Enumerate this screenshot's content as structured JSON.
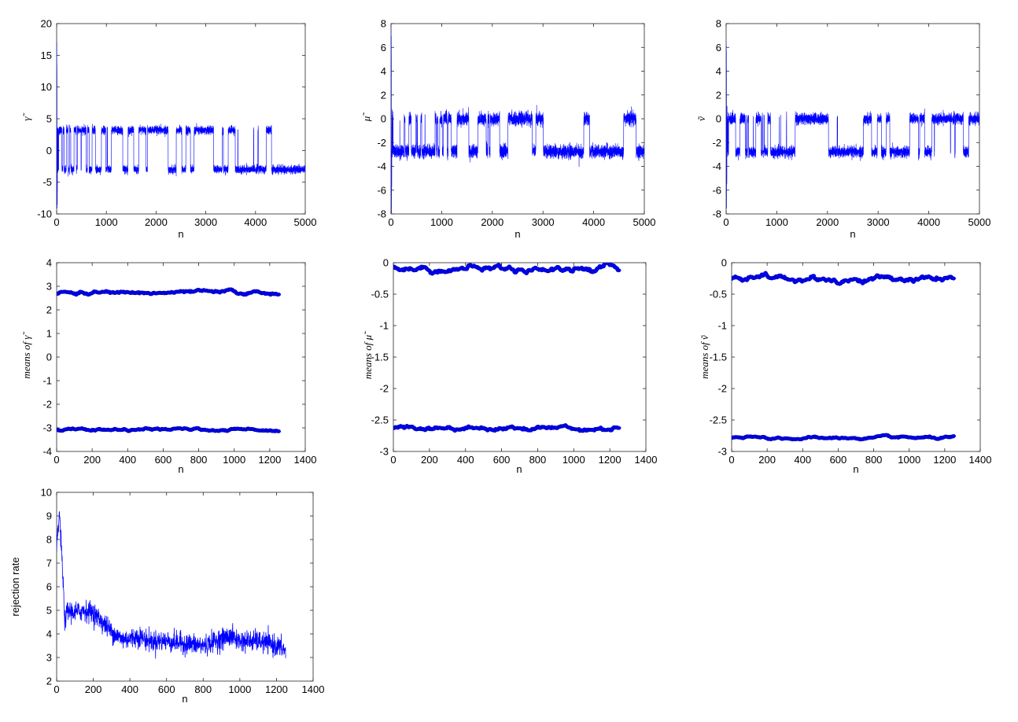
{
  "chart_data": [
    {
      "id": "p1",
      "type": "line",
      "ylabel": "γ̃",
      "xlabel": "n",
      "xlim": [
        0,
        5000
      ],
      "ylim": [
        -10,
        20
      ],
      "xticks": [
        "0",
        "1000",
        "2000",
        "3000",
        "4000",
        "5000"
      ],
      "yticks": [
        "-10",
        "-5",
        "0",
        "5",
        "10",
        "15",
        "20"
      ],
      "series": [
        {
          "color": "#0000ff",
          "pattern": "two-mode trace",
          "n": 5000,
          "upper_mode": 3.2,
          "lower_mode": -3.0,
          "band_halfwidth": 0.7,
          "burn_in_peak": 16.7,
          "burn_in_trough": -9.8,
          "jumps_until": 4500
        }
      ]
    },
    {
      "id": "p2",
      "type": "line",
      "ylabel": "μ̃",
      "xlabel": "n",
      "xlim": [
        0,
        5000
      ],
      "ylim": [
        -8,
        8
      ],
      "xticks": [
        "0",
        "1000",
        "2000",
        "3000",
        "4000",
        "5000"
      ],
      "yticks": [
        "-8",
        "-6",
        "-4",
        "-2",
        "0",
        "2",
        "4",
        "6",
        "8"
      ],
      "series": [
        {
          "color": "#0000ff",
          "pattern": "two-mode trace",
          "n": 5000,
          "upper_mode": 0.0,
          "lower_mode": -2.75,
          "band_halfwidth": 0.6,
          "burn_in_peak": 6.5,
          "burn_in_trough": -7.8,
          "jumps_until": 4900
        }
      ]
    },
    {
      "id": "p3",
      "type": "line",
      "ylabel": "ṽ",
      "xlabel": "n",
      "xlim": [
        0,
        5000
      ],
      "ylim": [
        -8,
        8
      ],
      "xticks": [
        "0",
        "1000",
        "2000",
        "3000",
        "4000",
        "5000"
      ],
      "yticks": [
        "-8",
        "-6",
        "-4",
        "-2",
        "0",
        "2",
        "4",
        "6",
        "8"
      ],
      "series": [
        {
          "color": "#0000ff",
          "pattern": "two-mode trace",
          "n": 5000,
          "upper_mode": 0.0,
          "lower_mode": -2.8,
          "band_halfwidth": 0.5,
          "burn_in_peak": 5.5,
          "burn_in_trough": -7.8,
          "jumps_until": 4800
        }
      ]
    },
    {
      "id": "p4",
      "type": "scatter",
      "ylabel": "means of γ̃",
      "xlabel": "n",
      "xlim": [
        0,
        1400
      ],
      "ylim": [
        -4,
        4
      ],
      "xticks": [
        "0",
        "200",
        "400",
        "600",
        "800",
        "1000",
        "1200",
        "1400"
      ],
      "yticks": [
        "-4",
        "-3",
        "-2",
        "-1",
        "0",
        "1",
        "2",
        "3",
        "4"
      ],
      "series": [
        {
          "color": "#0000ff",
          "x_start": 0,
          "x_end": 1250,
          "count": 250,
          "y_center": 2.72,
          "y_spread": 0.06
        },
        {
          "color": "#0000ff",
          "x_start": 0,
          "x_end": 1250,
          "count": 250,
          "y_center": -3.08,
          "y_spread": 0.04
        }
      ]
    },
    {
      "id": "p5",
      "type": "scatter",
      "ylabel": "means of μ̃",
      "xlabel": "n",
      "xlim": [
        0,
        1400
      ],
      "ylim": [
        -3,
        0
      ],
      "xticks": [
        "0",
        "200",
        "400",
        "600",
        "800",
        "1000",
        "1200",
        "1400"
      ],
      "yticks": [
        "-3",
        "-2.5",
        "-2",
        "-1.5",
        "-1",
        "-0.5",
        "0"
      ],
      "series": [
        {
          "color": "#0000ff",
          "x_start": 0,
          "x_end": 1250,
          "count": 250,
          "y_center": -0.09,
          "y_spread": 0.04
        },
        {
          "color": "#0000ff",
          "x_start": 0,
          "x_end": 1250,
          "count": 250,
          "y_center": -2.62,
          "y_spread": 0.03
        }
      ]
    },
    {
      "id": "p6",
      "type": "scatter",
      "ylabel": "means of ṽ",
      "xlabel": "n",
      "xlim": [
        0,
        1400
      ],
      "ylim": [
        -3,
        0
      ],
      "xticks": [
        "0",
        "200",
        "400",
        "600",
        "800",
        "1000",
        "1200",
        "1400"
      ],
      "yticks": [
        "-3",
        "-2.5",
        "-2",
        "-1.5",
        "-1",
        "-0.5",
        "0"
      ],
      "series": [
        {
          "color": "#0000ff",
          "x_start": 0,
          "x_end": 1250,
          "count": 250,
          "y_center": -0.26,
          "y_spread": 0.04
        },
        {
          "color": "#0000ff",
          "x_start": 0,
          "x_end": 1250,
          "count": 250,
          "y_center": -2.79,
          "y_spread": 0.015
        }
      ]
    },
    {
      "id": "p7",
      "type": "line",
      "ylabel": "rejection rate",
      "xlabel": "n",
      "xlim": [
        0,
        1400
      ],
      "ylim": [
        2,
        10
      ],
      "xticks": [
        "0",
        "200",
        "400",
        "600",
        "800",
        "1000",
        "1200",
        "1400"
      ],
      "yticks": [
        "2",
        "3",
        "4",
        "5",
        "6",
        "7",
        "8",
        "9",
        "10"
      ],
      "series": [
        {
          "color": "#0000ff",
          "pattern": "noisy trend",
          "x_end": 1250,
          "knots_x": [
            0,
            15,
            30,
            45,
            60,
            100,
            150,
            200,
            250,
            300,
            350,
            400,
            450,
            500,
            600,
            700,
            800,
            900,
            950,
            1000,
            1100,
            1200,
            1250
          ],
          "knots_y": [
            7.6,
            9.1,
            7.0,
            4.5,
            5.0,
            4.9,
            5.0,
            4.9,
            4.5,
            4.1,
            3.8,
            3.8,
            3.9,
            3.7,
            3.7,
            3.6,
            3.5,
            3.8,
            3.9,
            3.7,
            3.7,
            3.5,
            3.3
          ],
          "noise": 0.22
        }
      ]
    }
  ]
}
